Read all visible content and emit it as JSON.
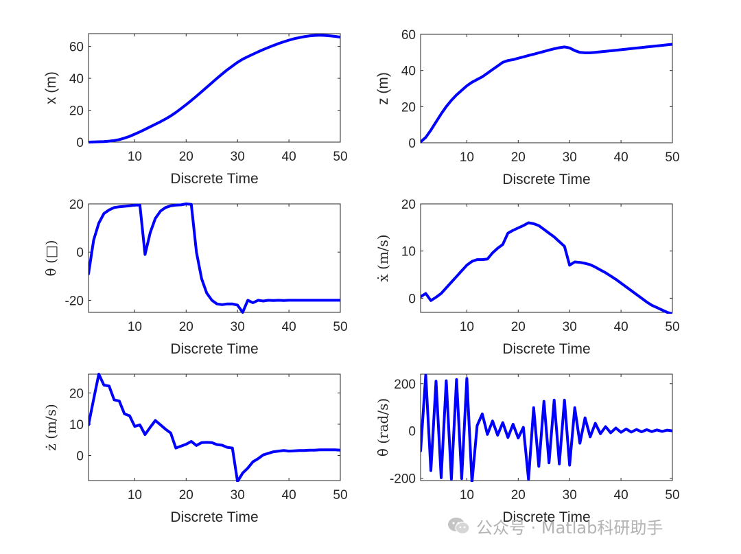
{
  "watermark": {
    "text": "公众号 · Matlab科研助手",
    "icon": "wechat-icon"
  },
  "colors": {
    "series": "#0000ff",
    "axis": "#262626",
    "watermark": "#b3b3b3"
  },
  "chart_data": [
    {
      "type": "line",
      "xlabel": "Discrete Time",
      "ylabel": "x (m)",
      "xlim": [
        1,
        50
      ],
      "ylim": [
        0,
        68
      ],
      "xticks": [
        10,
        20,
        30,
        40,
        50
      ],
      "yticks": [
        0,
        20,
        40,
        60
      ],
      "x": [
        1,
        2,
        3,
        4,
        5,
        6,
        7,
        8,
        9,
        10,
        11,
        12,
        13,
        14,
        15,
        16,
        17,
        18,
        19,
        20,
        21,
        22,
        23,
        24,
        25,
        26,
        27,
        28,
        29,
        30,
        31,
        32,
        33,
        34,
        35,
        36,
        37,
        38,
        39,
        40,
        41,
        42,
        43,
        44,
        45,
        46,
        47,
        48,
        49,
        50
      ],
      "y": [
        0,
        0.1,
        0.2,
        0.3,
        0.6,
        1,
        1.6,
        2.5,
        3.6,
        5,
        6.4,
        8,
        9.6,
        11.2,
        12.8,
        14.5,
        16.4,
        18.6,
        21,
        23.5,
        26.1,
        28.8,
        31.6,
        34.4,
        37.2,
        40,
        42.7,
        45.3,
        47.7,
        50,
        52,
        53.6,
        55.1,
        56.6,
        58,
        59.3,
        60.6,
        61.8,
        62.9,
        63.9,
        64.8,
        65.5,
        66.1,
        66.6,
        66.9,
        67,
        66.9,
        66.6,
        66.3,
        65.8
      ]
    },
    {
      "type": "line",
      "xlabel": "Discrete Time",
      "ylabel": "z (m)",
      "xlim": [
        1,
        50
      ],
      "ylim": [
        0,
        60
      ],
      "xticks": [
        10,
        20,
        30,
        40,
        50
      ],
      "yticks": [
        0,
        20,
        40,
        60
      ],
      "x": [
        1,
        2,
        3,
        4,
        5,
        6,
        7,
        8,
        9,
        10,
        11,
        12,
        13,
        14,
        15,
        16,
        17,
        18,
        19,
        20,
        21,
        22,
        23,
        24,
        25,
        26,
        27,
        28,
        29,
        30,
        31,
        32,
        33,
        34,
        35,
        36,
        37,
        38,
        39,
        40,
        41,
        42,
        43,
        44,
        45,
        46,
        47,
        48,
        49,
        50
      ],
      "y": [
        0.5,
        3,
        7,
        11.5,
        16,
        20,
        23.5,
        26.5,
        29,
        31.5,
        33.5,
        35,
        36.5,
        38.5,
        40.5,
        42.5,
        44.5,
        45.5,
        46,
        46.8,
        47.5,
        48.3,
        49,
        49.8,
        50.5,
        51.3,
        52,
        52.6,
        53,
        52.5,
        51,
        50,
        49.8,
        49.8,
        50,
        50.3,
        50.6,
        50.9,
        51.2,
        51.5,
        51.8,
        52.1,
        52.4,
        52.7,
        53,
        53.3,
        53.6,
        53.9,
        54.2,
        54.5
      ]
    },
    {
      "type": "line",
      "xlabel": "Discrete Time",
      "ylabel": "θ (□)",
      "xlim": [
        1,
        50
      ],
      "ylim": [
        -25,
        20
      ],
      "xticks": [
        10,
        20,
        30,
        40,
        50
      ],
      "yticks": [
        -20,
        0,
        20
      ],
      "x": [
        1,
        2,
        3,
        4,
        5,
        6,
        7,
        8,
        9,
        10,
        11,
        12,
        13,
        14,
        15,
        16,
        17,
        18,
        19,
        20,
        21,
        22,
        23,
        24,
        25,
        26,
        27,
        28,
        29,
        30,
        31,
        32,
        33,
        34,
        35,
        36,
        37,
        38,
        39,
        40,
        41,
        42,
        43,
        44,
        45,
        46,
        47,
        48,
        49,
        50
      ],
      "y": [
        -9,
        5,
        12,
        16,
        17.5,
        18.5,
        18.8,
        19,
        19.2,
        19.5,
        19.5,
        -1,
        8,
        14,
        17,
        18.5,
        19.2,
        19.5,
        19.6,
        20,
        19.8,
        0,
        -11,
        -17,
        -20,
        -21.5,
        -21.8,
        -21.5,
        -21.5,
        -22,
        -25,
        -20,
        -21,
        -20,
        -20.3,
        -20,
        -20.1,
        -20,
        -20.1,
        -20,
        -20,
        -20,
        -20,
        -20,
        -20,
        -20,
        -20,
        -20,
        -20,
        -20
      ]
    },
    {
      "type": "line",
      "xlabel": "Discrete Time",
      "ylabel": "ẋ (m/s)",
      "xlim": [
        1,
        50
      ],
      "ylim": [
        -3,
        20
      ],
      "xticks": [
        10,
        20,
        30,
        40,
        50
      ],
      "yticks": [
        0,
        10,
        20
      ],
      "x": [
        1,
        2,
        3,
        4,
        5,
        6,
        7,
        8,
        9,
        10,
        11,
        12,
        13,
        14,
        15,
        16,
        17,
        18,
        19,
        20,
        21,
        22,
        23,
        24,
        25,
        26,
        27,
        28,
        29,
        30,
        31,
        32,
        33,
        34,
        35,
        36,
        37,
        38,
        39,
        40,
        41,
        42,
        43,
        44,
        45,
        46,
        47,
        48,
        49,
        50
      ],
      "y": [
        0.3,
        1,
        -0.5,
        0.2,
        1,
        2.2,
        3.4,
        4.6,
        5.8,
        7,
        7.8,
        8.2,
        8.2,
        8.3,
        9.6,
        10.6,
        11.4,
        13.8,
        14.4,
        14.9,
        15.4,
        16,
        15.8,
        15.4,
        14.6,
        13.8,
        13,
        12,
        11,
        7,
        7.7,
        7.6,
        7.4,
        7.1,
        6.6,
        6,
        5.4,
        4.7,
        4,
        3.2,
        2.4,
        1.6,
        0.8,
        0,
        -0.8,
        -1.5,
        -2,
        -2.5,
        -3,
        -3.3
      ]
    },
    {
      "type": "line",
      "xlabel": "Discrete Time",
      "ylabel": "ż (m/s)",
      "xlim": [
        1,
        50
      ],
      "ylim": [
        -8,
        26
      ],
      "xticks": [
        10,
        20,
        30,
        40,
        50
      ],
      "yticks": [
        0,
        10,
        20
      ],
      "x": [
        1,
        2,
        3,
        4,
        5,
        6,
        7,
        8,
        9,
        10,
        11,
        12,
        13,
        14,
        15,
        16,
        17,
        18,
        19,
        20,
        21,
        22,
        23,
        24,
        25,
        26,
        27,
        28,
        29,
        30,
        31,
        32,
        33,
        34,
        35,
        36,
        37,
        38,
        39,
        40,
        41,
        42,
        43,
        44,
        45,
        46,
        47,
        48,
        49,
        50
      ],
      "y": [
        9.8,
        18,
        26,
        22.5,
        22.2,
        17.8,
        17.4,
        13.3,
        12.7,
        9.3,
        9.8,
        6.7,
        9,
        11.2,
        9.8,
        8.4,
        7.2,
        2.4,
        3,
        3.6,
        4.5,
        3.2,
        4.1,
        4.2,
        4.1,
        3.5,
        3.3,
        2.6,
        2.4,
        -8.3,
        -5.6,
        -4,
        -2,
        -1,
        0.2,
        0.7,
        1.2,
        1.4,
        1.6,
        1.4,
        1.5,
        1.6,
        1.6,
        1.7,
        1.7,
        1.8,
        1.8,
        1.8,
        1.8,
        1.7
      ]
    },
    {
      "type": "line",
      "xlabel": "Discrete Time",
      "ylabel": "θ̇ (rad/s)",
      "xlim": [
        1,
        50
      ],
      "ylim": [
        -210,
        240
      ],
      "xticks": [
        10,
        20,
        30,
        40,
        50
      ],
      "yticks": [
        -200,
        0,
        200
      ],
      "x": [
        1,
        2,
        3,
        4,
        5,
        6,
        7,
        8,
        9,
        10,
        11,
        12,
        13,
        14,
        15,
        16,
        17,
        18,
        19,
        20,
        21,
        22,
        23,
        24,
        25,
        26,
        27,
        28,
        29,
        30,
        31,
        32,
        33,
        34,
        35,
        36,
        37,
        38,
        39,
        40,
        41,
        42,
        43,
        44,
        45,
        46,
        47,
        48,
        49,
        50
      ],
      "y": [
        -85,
        236,
        -168,
        210,
        -198,
        212,
        -204,
        217,
        -202,
        222,
        -218,
        22,
        72,
        -15,
        42,
        -18,
        35,
        -28,
        28,
        -30,
        15,
        -205,
        98,
        -150,
        125,
        -135,
        130,
        -140,
        130,
        -145,
        98,
        -52,
        55,
        -25,
        32,
        -12,
        18,
        -8,
        12,
        -6,
        8,
        -5,
        6,
        -4,
        5,
        -3,
        4,
        -2,
        3,
        0
      ]
    }
  ]
}
